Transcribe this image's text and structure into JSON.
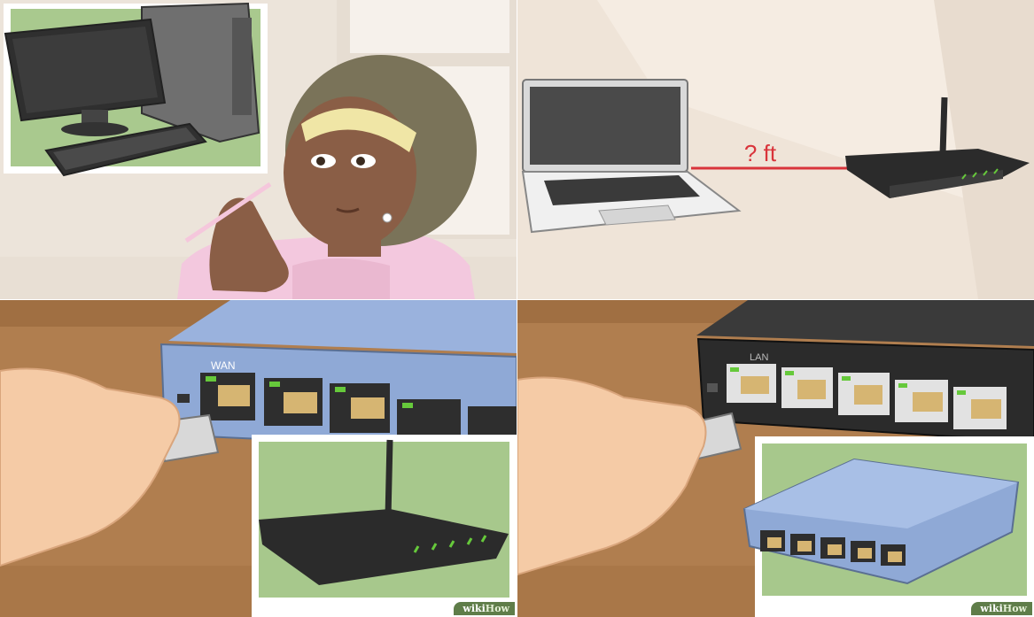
{
  "panels": [
    {
      "id": "choose-device",
      "illustration": "woman-thinking-about-desktop-computer"
    },
    {
      "id": "measure-distance",
      "illustration": "laptop-to-router-distance",
      "distance_label": "? ft"
    },
    {
      "id": "wan-port",
      "illustration": "hand-plugging-ethernet-into-router-wan",
      "port_label": "WAN"
    },
    {
      "id": "lan-port",
      "illustration": "hand-plugging-ethernet-into-switch-lan",
      "port_label": "LAN"
    }
  ],
  "watermark": {
    "prefix": "wiki",
    "suffix": "How"
  },
  "colors": {
    "wall": "#ede2d6",
    "wood": "#b07e4f",
    "inset_bg": "#a7c88c",
    "router_blue": "#8fa9d6",
    "router_black": "#2b2b2b",
    "cable_red": "#d9343b",
    "led_green": "#66c93b"
  }
}
